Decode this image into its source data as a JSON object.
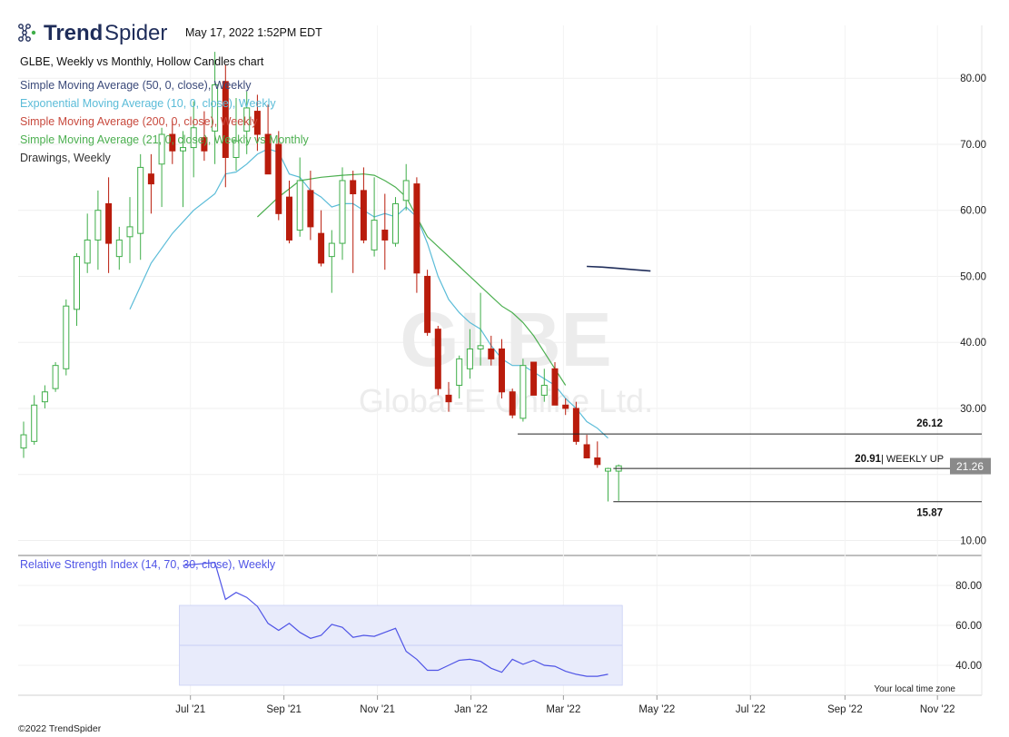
{
  "header": {
    "brand_bold": "Trend",
    "brand_light": "Spider",
    "timestamp": "May 17, 2022 1:52PM EDT",
    "chart_title": "GLBE, Weekly vs Monthly, Hollow Candles chart",
    "copyright": "©2022 TrendSpider",
    "timezone_note": "Your local time zone"
  },
  "colors": {
    "up": "#3fae49",
    "down": "#b91c0c",
    "sma50": "#1f2d5a",
    "ema10": "#5bbcd8",
    "sma200": "#c84a3e",
    "sma21m": "#4caf50",
    "rsi": "#4f54e6",
    "rsi_band": "#e8ebfb"
  },
  "indicators": [
    {
      "label": "Simple Moving Average (50, 0, close), Weekly",
      "color": "#3b4a7a"
    },
    {
      "label": "Exponential Moving Average (10, 0, close), Weekly",
      "color": "#5bbcd8"
    },
    {
      "label": "Simple Moving Average (200, 0, close), Weekly",
      "color": "#c84a3e"
    },
    {
      "label": "Simple Moving Average (21, 0, close), Weekly vs Monthly",
      "color": "#4caf50"
    },
    {
      "label": "Drawings, Weekly",
      "color": "#333333"
    }
  ],
  "watermark": {
    "symbol": "GLBE",
    "company": "Global-E Online Ltd."
  },
  "chart_data": {
    "type": "candlestick",
    "style": "hollow",
    "timeframe": "Weekly",
    "symbol": "GLBE",
    "price_axis": {
      "ticks": [
        10,
        20,
        30,
        40,
        50,
        60,
        70,
        80
      ],
      "tick_labels": [
        "10.00",
        "",
        "30.00",
        "40.00",
        "50.00",
        "60.00",
        "70.00",
        "80.00"
      ],
      "range": [
        8,
        88
      ]
    },
    "x_axis_labels": [
      "Jul '21",
      "Sep '21",
      "Nov '21",
      "Jan '22",
      "Mar '22",
      "May '22",
      "Jul '22",
      "Sep '22",
      "Nov '22"
    ],
    "x_axis_label_weeks": [
      15.7,
      24.5,
      33.3,
      42.1,
      50.8,
      59.6,
      68.4,
      77.3,
      86.0
    ],
    "candles": [
      {
        "w": 0,
        "o": 24.0,
        "h": 28.0,
        "l": 22.5,
        "c": 26.0
      },
      {
        "w": 1,
        "o": 25.0,
        "h": 32.0,
        "l": 24.5,
        "c": 30.5
      },
      {
        "w": 2,
        "o": 31.0,
        "h": 33.5,
        "l": 30.0,
        "c": 32.5
      },
      {
        "w": 3,
        "o": 33.0,
        "h": 37.0,
        "l": 32.5,
        "c": 36.5
      },
      {
        "w": 4,
        "o": 36.0,
        "h": 46.5,
        "l": 35.0,
        "c": 45.5
      },
      {
        "w": 5,
        "o": 45.0,
        "h": 53.5,
        "l": 42.5,
        "c": 53.0
      },
      {
        "w": 6,
        "o": 52.0,
        "h": 59.5,
        "l": 50.5,
        "c": 55.5
      },
      {
        "w": 7,
        "o": 55.5,
        "h": 63.0,
        "l": 51.0,
        "c": 60.0
      },
      {
        "w": 8,
        "o": 61.0,
        "h": 65.0,
        "l": 50.5,
        "c": 55.0
      },
      {
        "w": 9,
        "o": 53.0,
        "h": 57.5,
        "l": 51.0,
        "c": 55.5
      },
      {
        "w": 10,
        "o": 56.0,
        "h": 62.0,
        "l": 52.0,
        "c": 57.5
      },
      {
        "w": 11,
        "o": 56.5,
        "h": 68.5,
        "l": 52.5,
        "c": 66.5
      },
      {
        "w": 12,
        "o": 65.5,
        "h": 68.5,
        "l": 59.5,
        "c": 64.0
      },
      {
        "w": 13,
        "o": 67.0,
        "h": 72.5,
        "l": 60.5,
        "c": 71.5
      },
      {
        "w": 14,
        "o": 71.5,
        "h": 73.5,
        "l": 67.0,
        "c": 69.0
      },
      {
        "w": 15,
        "o": 69.0,
        "h": 72.0,
        "l": 60.5,
        "c": 69.5
      },
      {
        "w": 16,
        "o": 69.5,
        "h": 76.5,
        "l": 65.0,
        "c": 72.5
      },
      {
        "w": 17,
        "o": 71.0,
        "h": 75.0,
        "l": 67.5,
        "c": 69.0
      },
      {
        "w": 18,
        "o": 72.0,
        "h": 84.0,
        "l": 67.0,
        "c": 79.0
      },
      {
        "w": 19,
        "o": 79.5,
        "h": 82.0,
        "l": 63.5,
        "c": 68.0
      },
      {
        "w": 20,
        "o": 68.0,
        "h": 77.0,
        "l": 66.0,
        "c": 70.5
      },
      {
        "w": 21,
        "o": 72.0,
        "h": 78.0,
        "l": 68.5,
        "c": 75.5
      },
      {
        "w": 22,
        "o": 75.0,
        "h": 77.5,
        "l": 69.0,
        "c": 71.5
      },
      {
        "w": 23,
        "o": 71.5,
        "h": 76.0,
        "l": 65.5,
        "c": 65.5
      },
      {
        "w": 24,
        "o": 70.0,
        "h": 72.0,
        "l": 58.5,
        "c": 59.5
      },
      {
        "w": 25,
        "o": 62.0,
        "h": 64.5,
        "l": 55.0,
        "c": 55.5
      },
      {
        "w": 26,
        "o": 57.0,
        "h": 68.0,
        "l": 56.0,
        "c": 64.5
      },
      {
        "w": 27,
        "o": 63.0,
        "h": 66.0,
        "l": 55.5,
        "c": 57.5
      },
      {
        "w": 28,
        "o": 56.5,
        "h": 60.0,
        "l": 51.5,
        "c": 52.0
      },
      {
        "w": 29,
        "o": 53.0,
        "h": 57.0,
        "l": 47.5,
        "c": 55.0
      },
      {
        "w": 30,
        "o": 55.0,
        "h": 66.5,
        "l": 52.5,
        "c": 64.5
      },
      {
        "w": 31,
        "o": 64.5,
        "h": 66.0,
        "l": 50.5,
        "c": 62.5
      },
      {
        "w": 32,
        "o": 63.0,
        "h": 66.5,
        "l": 55.0,
        "c": 55.5
      },
      {
        "w": 33,
        "o": 54.0,
        "h": 65.0,
        "l": 53.0,
        "c": 58.5
      },
      {
        "w": 34,
        "o": 57.0,
        "h": 62.5,
        "l": 51.0,
        "c": 55.5
      },
      {
        "w": 35,
        "o": 55.0,
        "h": 62.0,
        "l": 54.5,
        "c": 61.0
      },
      {
        "w": 36,
        "o": 61.5,
        "h": 67.0,
        "l": 60.0,
        "c": 64.5
      },
      {
        "w": 37,
        "o": 64.0,
        "h": 65.0,
        "l": 47.5,
        "c": 50.5
      },
      {
        "w": 38,
        "o": 50.0,
        "h": 51.0,
        "l": 41.0,
        "c": 41.5
      },
      {
        "w": 39,
        "o": 42.0,
        "h": 42.5,
        "l": 32.0,
        "c": 33.0
      },
      {
        "w": 40,
        "o": 32.0,
        "h": 34.0,
        "l": 29.5,
        "c": 31.0
      },
      {
        "w": 41,
        "o": 33.5,
        "h": 38.0,
        "l": 31.5,
        "c": 37.5
      },
      {
        "w": 42,
        "o": 36.0,
        "h": 42.0,
        "l": 34.5,
        "c": 39.0
      },
      {
        "w": 43,
        "o": 39.0,
        "h": 47.5,
        "l": 36.5,
        "c": 39.5
      },
      {
        "w": 44,
        "o": 39.0,
        "h": 41.0,
        "l": 36.5,
        "c": 37.5
      },
      {
        "w": 45,
        "o": 39.0,
        "h": 40.5,
        "l": 31.5,
        "c": 32.5
      },
      {
        "w": 46,
        "o": 32.5,
        "h": 33.0,
        "l": 28.5,
        "c": 29.0
      },
      {
        "w": 47,
        "o": 28.5,
        "h": 37.5,
        "l": 28.0,
        "c": 36.5
      },
      {
        "w": 48,
        "o": 37.0,
        "h": 37.0,
        "l": 32.0,
        "c": 32.0
      },
      {
        "w": 49,
        "o": 32.0,
        "h": 36.0,
        "l": 31.0,
        "c": 33.5
      },
      {
        "w": 50,
        "o": 36.0,
        "h": 37.0,
        "l": 30.5,
        "c": 30.5
      },
      {
        "w": 51,
        "o": 30.5,
        "h": 31.5,
        "l": 29.0,
        "c": 30.0
      },
      {
        "w": 52,
        "o": 30.0,
        "h": 31.0,
        "l": 24.5,
        "c": 25.0
      },
      {
        "w": 53,
        "o": 24.5,
        "h": 26.0,
        "l": 22.5,
        "c": 22.5
      },
      {
        "w": 54,
        "o": 22.5,
        "h": 25.0,
        "l": 21.0,
        "c": 21.5
      },
      {
        "w": 55,
        "o": 20.5,
        "h": 21.0,
        "l": 15.9,
        "c": 20.9
      },
      {
        "w": 56,
        "o": 20.5,
        "h": 21.5,
        "l": 16.0,
        "c": 21.3
      }
    ],
    "moving_averages": [
      {
        "label_ref": 0,
        "points": [
          [
            53.0,
            51.5
          ],
          [
            54.5,
            51.4
          ],
          [
            56.0,
            51.2
          ],
          [
            57.5,
            51.0
          ],
          [
            59.0,
            50.8
          ]
        ]
      },
      {
        "label_ref": 1,
        "points": [
          [
            10,
            45
          ],
          [
            12,
            52
          ],
          [
            14,
            56.5
          ],
          [
            16,
            60
          ],
          [
            18,
            62.5
          ],
          [
            19,
            65.5
          ],
          [
            20,
            65.8
          ],
          [
            21,
            67
          ],
          [
            22,
            68.5
          ],
          [
            23,
            69.3
          ],
          [
            24,
            68.8
          ],
          [
            25,
            65.5
          ],
          [
            26,
            65
          ],
          [
            27,
            63
          ],
          [
            28,
            62
          ],
          [
            29,
            60.5
          ],
          [
            30,
            61
          ],
          [
            31,
            61
          ],
          [
            32,
            60
          ],
          [
            33,
            59
          ],
          [
            34,
            59.5
          ],
          [
            35,
            59
          ],
          [
            36,
            60.5
          ],
          [
            37,
            59
          ],
          [
            38,
            55
          ],
          [
            39,
            50
          ],
          [
            40,
            46.5
          ],
          [
            41,
            44.5
          ],
          [
            42,
            43
          ],
          [
            43,
            42
          ],
          [
            44,
            39.5
          ],
          [
            45,
            37.5
          ],
          [
            46,
            36.5
          ],
          [
            47,
            36.5
          ],
          [
            48,
            35.5
          ],
          [
            49,
            34.5
          ],
          [
            50,
            33.5
          ],
          [
            51,
            31.5
          ],
          [
            52,
            30
          ],
          [
            53,
            28
          ],
          [
            54,
            27
          ],
          [
            55,
            25.5
          ]
        ]
      },
      {
        "label_ref": 3,
        "points": [
          [
            22,
            59
          ],
          [
            24,
            62
          ],
          [
            26,
            64.5
          ],
          [
            28,
            65
          ],
          [
            30,
            65.3
          ],
          [
            32,
            65.5
          ],
          [
            33,
            65.3
          ],
          [
            34,
            64.5
          ],
          [
            35,
            63.5
          ],
          [
            36,
            62
          ],
          [
            37,
            59
          ],
          [
            38,
            56
          ],
          [
            39,
            54.5
          ],
          [
            40,
            53
          ],
          [
            41,
            51.5
          ],
          [
            42,
            50
          ],
          [
            43,
            48.5
          ],
          [
            44,
            47
          ],
          [
            45,
            45.5
          ],
          [
            46,
            44.5
          ],
          [
            47,
            43
          ],
          [
            48,
            41
          ],
          [
            49,
            38.5
          ],
          [
            50,
            36
          ],
          [
            51,
            33.5
          ]
        ]
      }
    ],
    "levels": [
      {
        "price": 26.12,
        "from_week": 46.5,
        "label": "26.12",
        "note": ""
      },
      {
        "price": 20.91,
        "from_week": 55.5,
        "label": "20.91",
        "note": "| WEEKLY UP"
      },
      {
        "price": 15.87,
        "from_week": 55.5,
        "label": "15.87",
        "note": ""
      }
    ],
    "last_price": "21.26",
    "rsi": {
      "label": "Relative Strength Index (14, 70, 30, close), Weekly",
      "ticks": [
        "80.00",
        "60.00",
        "40.00"
      ],
      "tick_values": [
        80,
        60,
        40
      ],
      "band": [
        30,
        70
      ],
      "band_from_week": 15,
      "band_to_week": 56,
      "range": [
        25,
        95
      ],
      "points": [
        [
          15,
          90
        ],
        [
          17,
          91
        ],
        [
          18,
          91.5
        ],
        [
          19,
          73
        ],
        [
          20,
          76.5
        ],
        [
          21,
          74
        ],
        [
          22,
          69.5
        ],
        [
          23,
          61
        ],
        [
          24,
          57.5
        ],
        [
          25,
          61
        ],
        [
          26,
          56.5
        ],
        [
          27,
          53.5
        ],
        [
          28,
          55
        ],
        [
          29,
          60.5
        ],
        [
          30,
          59
        ],
        [
          31,
          54
        ],
        [
          32,
          55
        ],
        [
          33,
          54.5
        ],
        [
          34,
          56.5
        ],
        [
          35,
          58.5
        ],
        [
          36,
          47
        ],
        [
          37,
          43
        ],
        [
          38,
          37.5
        ],
        [
          39,
          37.5
        ],
        [
          40,
          40
        ],
        [
          41,
          42.5
        ],
        [
          42,
          43
        ],
        [
          43,
          42
        ],
        [
          44,
          38.5
        ],
        [
          45,
          36.5
        ],
        [
          46,
          43
        ],
        [
          47,
          40.5
        ],
        [
          48,
          42.5
        ],
        [
          49,
          40
        ],
        [
          50,
          39.5
        ],
        [
          51,
          37
        ],
        [
          52,
          35.5
        ],
        [
          53,
          34.5
        ],
        [
          54,
          34.5
        ],
        [
          55,
          35.5
        ]
      ]
    }
  }
}
